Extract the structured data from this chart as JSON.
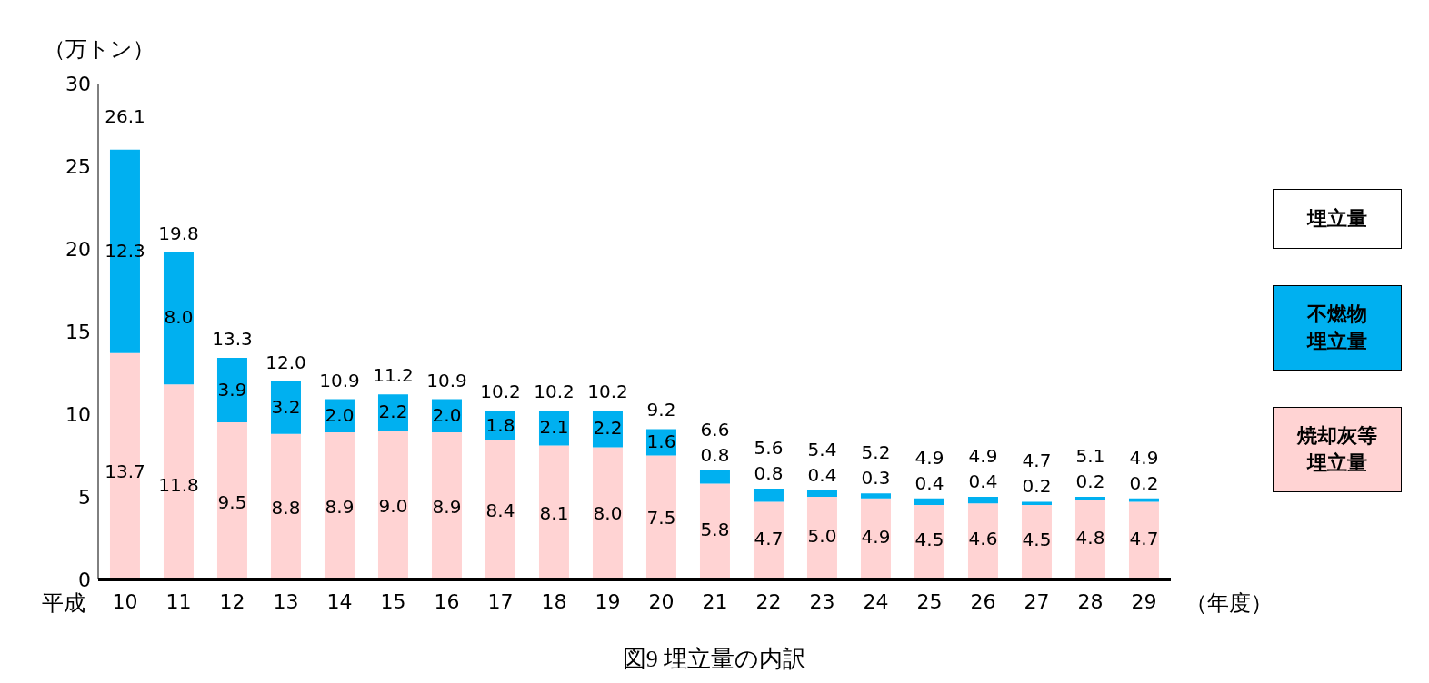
{
  "chart_data": {
    "type": "bar",
    "stacked": true,
    "ylabel": "（万トン）",
    "xlabel": "（年度）",
    "annotations": [
      "平成",
      "埋立量",
      "図9 埋立量の内訳"
    ],
    "categories": [
      "10",
      "11",
      "12",
      "13",
      "14",
      "15",
      "16",
      "17",
      "18",
      "19",
      "20",
      "21",
      "22",
      "23",
      "24",
      "25",
      "26",
      "27",
      "28",
      "29"
    ],
    "series": [
      {
        "name": "焼却灰等埋立量",
        "color": "#ffd3d3",
        "values": [
          13.7,
          11.8,
          9.5,
          8.8,
          8.9,
          9.0,
          8.9,
          8.4,
          8.1,
          8.0,
          7.5,
          5.8,
          4.7,
          5.0,
          4.9,
          4.5,
          4.6,
          4.5,
          4.8,
          4.7
        ],
        "value_labels": [
          "13.7",
          "11.8",
          "9.5",
          "8.8",
          "8.9",
          "9.0",
          "8.9",
          "8.4",
          "8.1",
          "8.0",
          "7.5",
          "5.8",
          "4.7",
          "5.0",
          "4.9",
          "4.5",
          "4.6",
          "4.5",
          "4.8",
          "4.7"
        ]
      },
      {
        "name": "不燃物埋立量",
        "color": "#00b0f0",
        "values": [
          12.3,
          8.0,
          3.9,
          3.2,
          2.0,
          2.2,
          2.0,
          1.8,
          2.1,
          2.2,
          1.6,
          0.8,
          0.8,
          0.4,
          0.3,
          0.4,
          0.4,
          0.2,
          0.2,
          0.2
        ],
        "value_labels": [
          "12.3",
          "8.0",
          "3.9",
          "3.2",
          "2.0",
          "2.2",
          "2.0",
          "1.8",
          "2.1",
          "2.2",
          "1.6",
          "0.8",
          "0.8",
          "0.4",
          "0.3",
          "0.4",
          "0.4",
          "0.2",
          "0.2",
          "0.2"
        ]
      }
    ],
    "totals": [
      "26.1",
      "19.8",
      "13.3",
      "12.0",
      "10.9",
      "11.2",
      "10.9",
      "10.2",
      "10.2",
      "10.2",
      "9.2",
      "6.6",
      "5.6",
      "5.4",
      "5.2",
      "4.9",
      "4.9",
      "4.7",
      "5.1",
      "4.9"
    ],
    "ylim": [
      0,
      30
    ],
    "yticks": [
      0,
      5,
      10,
      15,
      20,
      25,
      30
    ],
    "grid": false,
    "legend": "right"
  }
}
